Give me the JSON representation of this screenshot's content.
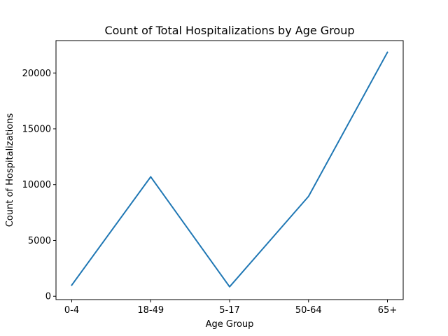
{
  "chart_data": {
    "type": "line",
    "title": "Count of Total Hospitalizations by Age Group",
    "xlabel": "Age Group",
    "ylabel": "Count of Hospitalizations",
    "categories": [
      "0-4",
      "18-49",
      "5-17",
      "50-64",
      "65+"
    ],
    "series": [
      {
        "values": [
          1000,
          10700,
          850,
          8950,
          21850
        ],
        "color": "#1f77b4"
      }
    ],
    "ylim": [
      -300,
      22900
    ],
    "yticks": [
      0,
      5000,
      10000,
      15000,
      20000
    ],
    "ytick_labels": [
      "0",
      "5000",
      "10000",
      "15000",
      "20000"
    ],
    "grid": false,
    "legend": "none"
  }
}
